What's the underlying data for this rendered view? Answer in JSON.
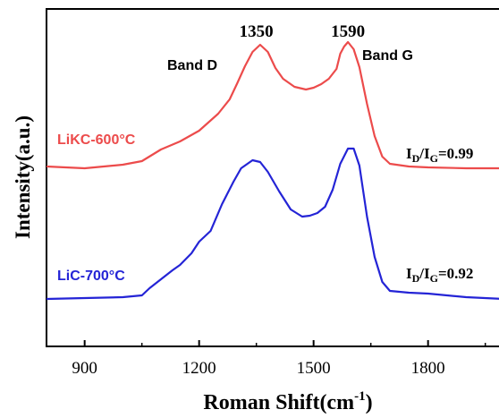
{
  "chart_data": {
    "type": "line",
    "xlabel": "Roman Shift(cm",
    "xlabel_sup": "-1",
    "xlabel_close": ")",
    "ylabel": "Intensity(a.u.)",
    "xlim": [
      800,
      2000
    ],
    "x_ticks": [
      900,
      1200,
      1500,
      1800
    ],
    "y_ticks": [],
    "peak_labels": [
      {
        "text": "1350",
        "x": 1350
      },
      {
        "text": "1590",
        "x": 1590
      }
    ],
    "band_labels": [
      {
        "text": "Band D",
        "x": 1350
      },
      {
        "text": "Band G",
        "x": 1590
      }
    ],
    "series": [
      {
        "name": "LiKC-600°C",
        "color": "#ec4b4b",
        "ratio_main": "I",
        "ratio_sub1": "D",
        "ratio_mid": "/I",
        "ratio_sub2": "G",
        "ratio_value": "=0.99",
        "points": [
          [
            800,
            186
          ],
          [
            850,
            187
          ],
          [
            900,
            188
          ],
          [
            950,
            186
          ],
          [
            1000,
            184
          ],
          [
            1050,
            180
          ],
          [
            1100,
            167
          ],
          [
            1150,
            158
          ],
          [
            1200,
            146
          ],
          [
            1250,
            127
          ],
          [
            1280,
            111
          ],
          [
            1300,
            93
          ],
          [
            1320,
            74
          ],
          [
            1340,
            58
          ],
          [
            1360,
            50
          ],
          [
            1380,
            58
          ],
          [
            1400,
            76
          ],
          [
            1420,
            88
          ],
          [
            1450,
            97
          ],
          [
            1480,
            100
          ],
          [
            1500,
            98
          ],
          [
            1520,
            94
          ],
          [
            1540,
            88
          ],
          [
            1560,
            77
          ],
          [
            1570,
            60
          ],
          [
            1580,
            52
          ],
          [
            1590,
            47
          ],
          [
            1605,
            55
          ],
          [
            1620,
            75
          ],
          [
            1640,
            116
          ],
          [
            1660,
            152
          ],
          [
            1680,
            175
          ],
          [
            1700,
            183
          ],
          [
            1750,
            186
          ],
          [
            1800,
            187
          ],
          [
            1900,
            188
          ],
          [
            2000,
            188
          ]
        ]
      },
      {
        "name": "LiC-700°C",
        "color": "#2424d6",
        "ratio_main": "I",
        "ratio_sub1": "D",
        "ratio_mid": "/I",
        "ratio_sub2": "G",
        "ratio_value": "=0.92",
        "points": [
          [
            800,
            334
          ],
          [
            900,
            333
          ],
          [
            1000,
            332
          ],
          [
            1050,
            330
          ],
          [
            1070,
            322
          ],
          [
            1100,
            312
          ],
          [
            1130,
            302
          ],
          [
            1150,
            296
          ],
          [
            1180,
            283
          ],
          [
            1200,
            270
          ],
          [
            1230,
            258
          ],
          [
            1260,
            228
          ],
          [
            1290,
            203
          ],
          [
            1310,
            188
          ],
          [
            1340,
            179
          ],
          [
            1360,
            181
          ],
          [
            1380,
            192
          ],
          [
            1410,
            214
          ],
          [
            1440,
            234
          ],
          [
            1470,
            242
          ],
          [
            1490,
            241
          ],
          [
            1510,
            238
          ],
          [
            1530,
            231
          ],
          [
            1550,
            212
          ],
          [
            1570,
            183
          ],
          [
            1590,
            166
          ],
          [
            1605,
            166
          ],
          [
            1620,
            185
          ],
          [
            1640,
            242
          ],
          [
            1660,
            287
          ],
          [
            1680,
            315
          ],
          [
            1700,
            325
          ],
          [
            1750,
            327
          ],
          [
            1800,
            328
          ],
          [
            1900,
            332
          ],
          [
            2000,
            334
          ]
        ]
      }
    ]
  }
}
